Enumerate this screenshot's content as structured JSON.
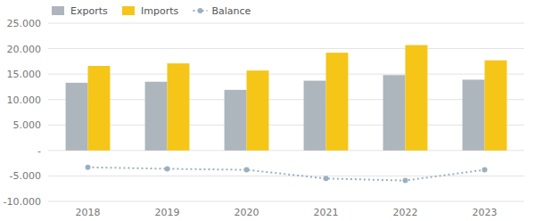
{
  "chart_data": {
    "type": "bar",
    "categories": [
      "2018",
      "2019",
      "2020",
      "2021",
      "2022",
      "2023"
    ],
    "series": [
      {
        "name": "Exports",
        "color": "#adb5bd",
        "values": [
          13300,
          13500,
          11900,
          13700,
          14800,
          13900
        ]
      },
      {
        "name": "Imports",
        "color": "#f5c518",
        "values": [
          16600,
          17100,
          15700,
          19200,
          20700,
          17700
        ]
      },
      {
        "name": "Balance",
        "type": "line",
        "color": "#9ab0c0",
        "marker": "circle",
        "line_style": "dotted",
        "values": [
          -3300,
          -3600,
          -3800,
          -5500,
          -5900,
          -3800
        ]
      }
    ],
    "ylim": [
      -10000,
      25000
    ],
    "yticks": [
      {
        "value": -10000,
        "label": "-10.000"
      },
      {
        "value": -5000,
        "label": "-5.000"
      },
      {
        "value": 0,
        "label": "-"
      },
      {
        "value": 5000,
        "label": "5.000"
      },
      {
        "value": 10000,
        "label": "10.000"
      },
      {
        "value": 15000,
        "label": "15.000"
      },
      {
        "value": 20000,
        "label": "20.000"
      },
      {
        "value": 25000,
        "label": "25.000"
      }
    ],
    "grid": true,
    "legend": "upper left"
  }
}
